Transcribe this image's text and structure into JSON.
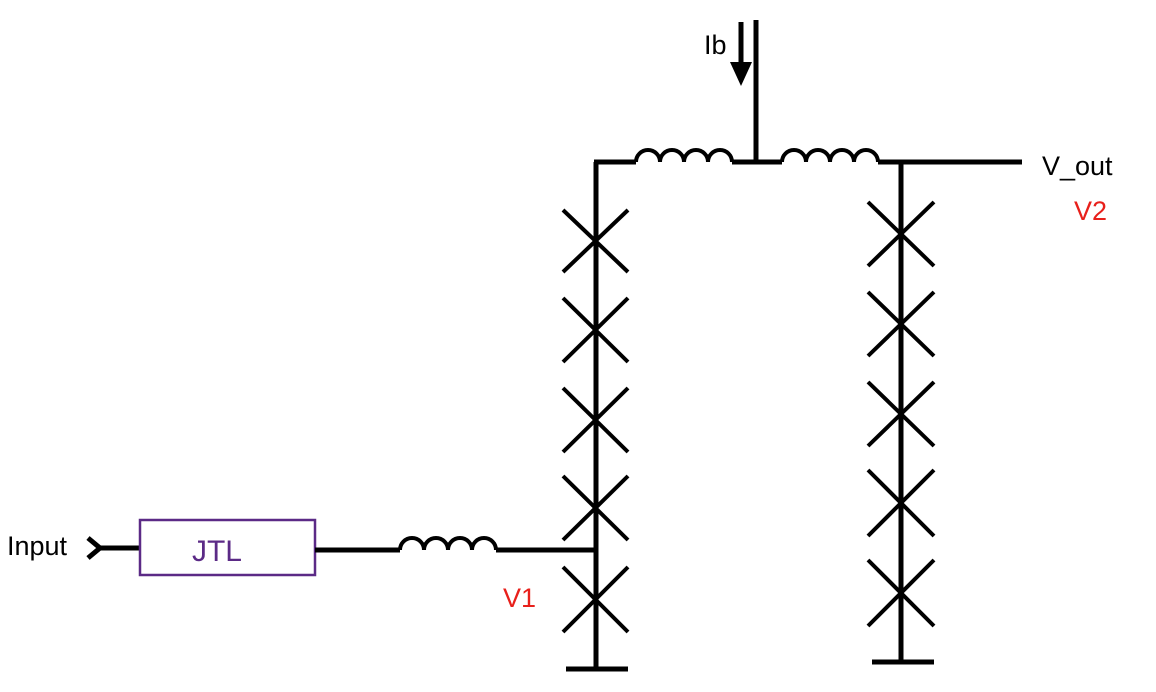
{
  "labels": {
    "input": "Input",
    "jtl": "JTL",
    "bias": "Ib",
    "output": "V_out",
    "node_v1": "V1",
    "node_v2": "V2"
  },
  "colors": {
    "wire": "#000000",
    "jtl_box": "#5b2a86",
    "node_label": "#e8201b"
  },
  "components": {
    "left_junction_stack_count": 5,
    "right_junction_stack_count": 5
  }
}
